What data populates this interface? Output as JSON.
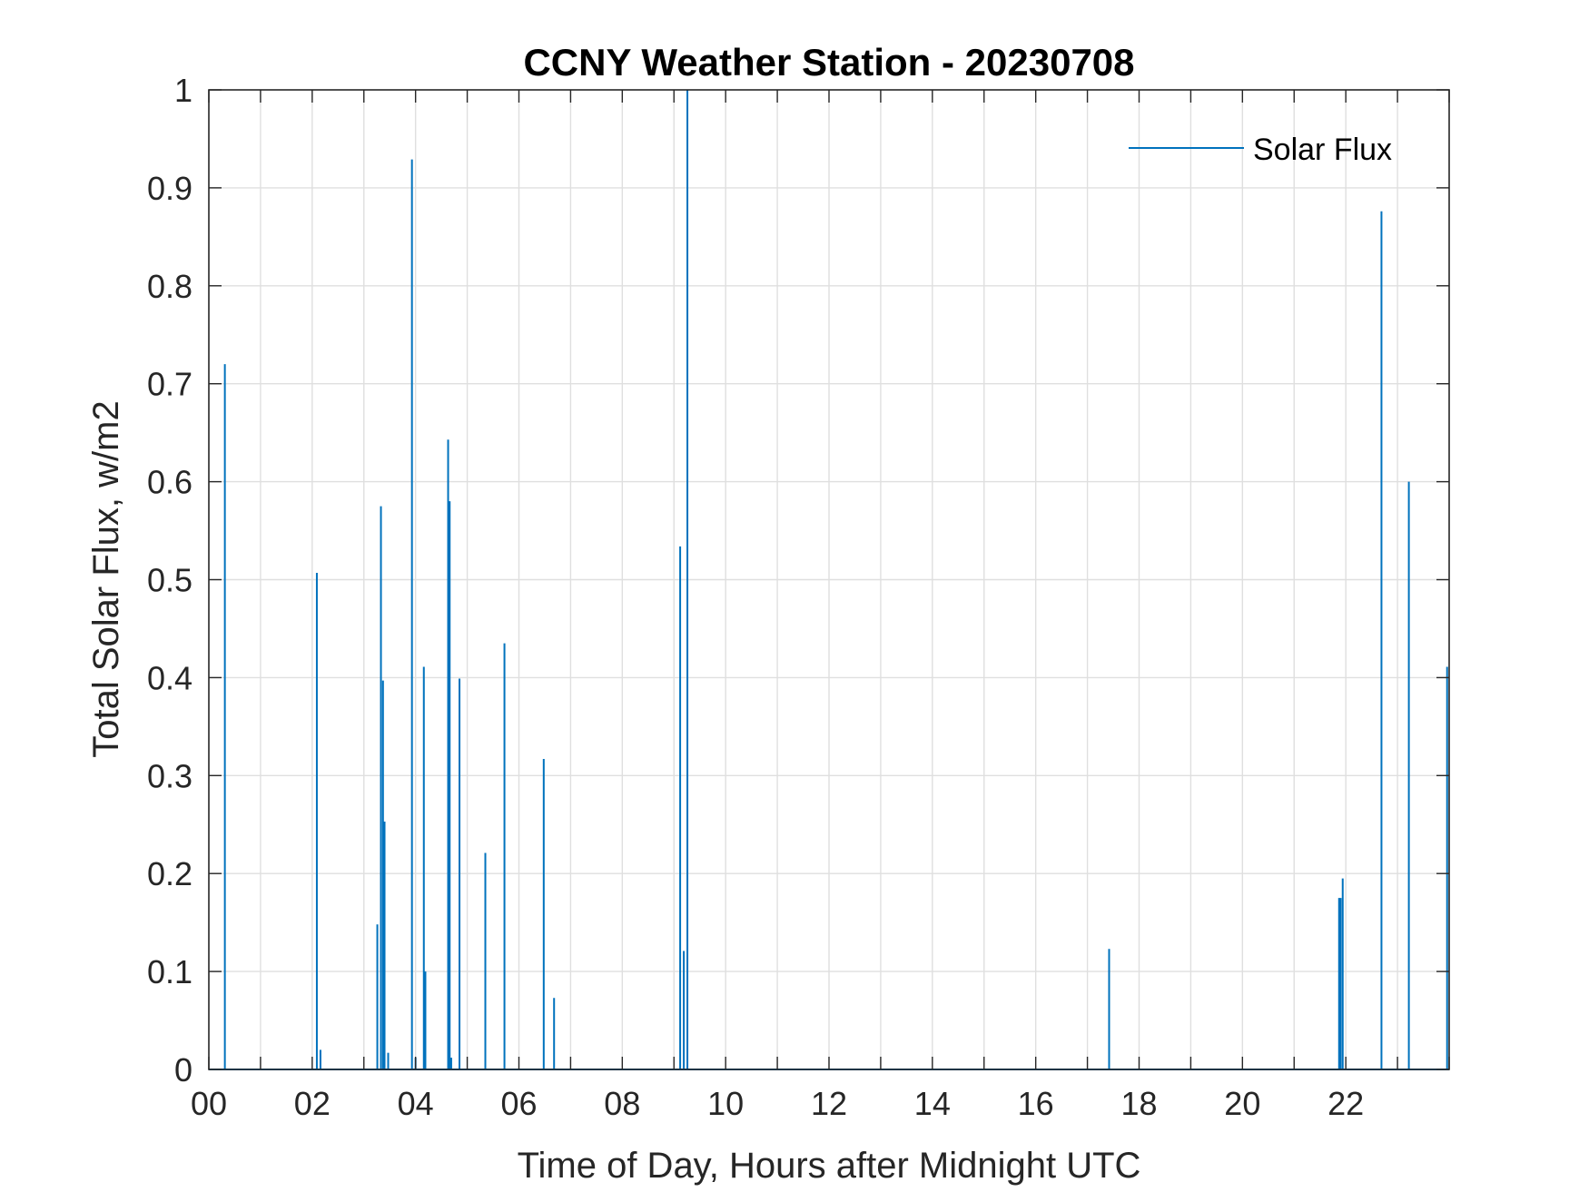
{
  "chart_data": {
    "type": "line",
    "title": "CCNY Weather Station - 20230708",
    "xlabel": "Time of Day, Hours after Midnight UTC",
    "ylabel": "Total Solar Flux, w/m2",
    "xlim": [
      0,
      24
    ],
    "ylim": [
      0,
      1
    ],
    "grid": true,
    "legend_position": "top-right",
    "x_ticks": [
      0,
      2,
      4,
      6,
      8,
      10,
      12,
      14,
      16,
      18,
      20,
      22
    ],
    "x_tick_labels": [
      "00",
      "02",
      "04",
      "06",
      "08",
      "10",
      "12",
      "14",
      "16",
      "18",
      "20",
      "22"
    ],
    "y_ticks": [
      0,
      0.1,
      0.2,
      0.3,
      0.4,
      0.5,
      0.6,
      0.7,
      0.8,
      0.9,
      1
    ],
    "y_tick_labels": [
      "0",
      "0.1",
      "0.2",
      "0.3",
      "0.4",
      "0.5",
      "0.6",
      "0.7",
      "0.8",
      "0.9",
      "1"
    ],
    "series": [
      {
        "name": "Solar Flux",
        "color": "#0072BD",
        "spikes": [
          {
            "x": 0.31,
            "y": 0.72
          },
          {
            "x": 2.09,
            "y": 0.507
          },
          {
            "x": 2.16,
            "y": 0.02
          },
          {
            "x": 3.26,
            "y": 0.148
          },
          {
            "x": 3.33,
            "y": 0.575
          },
          {
            "x": 3.37,
            "y": 0.397
          },
          {
            "x": 3.4,
            "y": 0.253
          },
          {
            "x": 3.47,
            "y": 0.017
          },
          {
            "x": 3.93,
            "y": 0.929
          },
          {
            "x": 4.0,
            "y": 0.012
          },
          {
            "x": 4.16,
            "y": 0.411
          },
          {
            "x": 4.19,
            "y": 0.1
          },
          {
            "x": 4.63,
            "y": 0.643
          },
          {
            "x": 4.66,
            "y": 0.58
          },
          {
            "x": 4.69,
            "y": 0.012
          },
          {
            "x": 4.85,
            "y": 0.399
          },
          {
            "x": 5.35,
            "y": 0.221
          },
          {
            "x": 5.72,
            "y": 0.435
          },
          {
            "x": 6.48,
            "y": 0.317
          },
          {
            "x": 6.68,
            "y": 0.073
          },
          {
            "x": 9.12,
            "y": 0.534
          },
          {
            "x": 9.19,
            "y": 0.121
          },
          {
            "x": 9.26,
            "y": 1.0
          },
          {
            "x": 17.42,
            "y": 0.123
          },
          {
            "x": 21.87,
            "y": 0.175
          },
          {
            "x": 21.9,
            "y": 0.175
          },
          {
            "x": 21.94,
            "y": 0.195
          },
          {
            "x": 22.69,
            "y": 0.876
          },
          {
            "x": 23.22,
            "y": 0.6
          },
          {
            "x": 23.96,
            "y": 0.411
          }
        ]
      }
    ]
  }
}
